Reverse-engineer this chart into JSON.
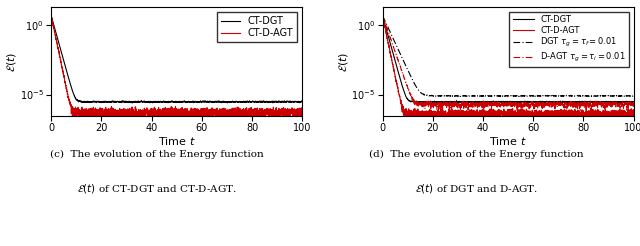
{
  "xlim": [
    0,
    100
  ],
  "xlabel": "Time $t$",
  "color_black": "#000000",
  "color_red": "#cc0000",
  "n_points": 5000,
  "t_max": 100,
  "ylim": [
    3e-07,
    20
  ],
  "yticks_major": [
    1e-05,
    1.0
  ],
  "lw": 0.8
}
